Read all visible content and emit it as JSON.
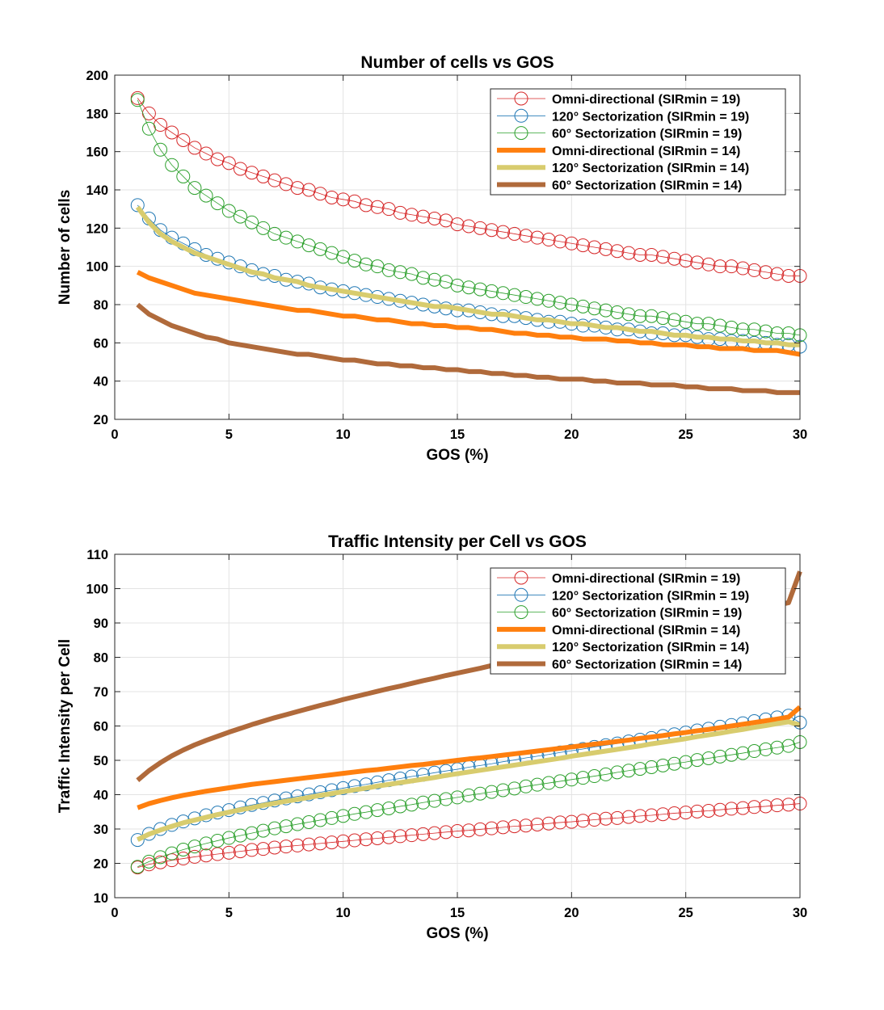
{
  "chart_data": [
    {
      "type": "line",
      "title": "Number of cells vs GOS",
      "xlabel": "GOS (%)",
      "ylabel": "Number of cells",
      "xlim": [
        0,
        30
      ],
      "ylim": [
        20,
        200
      ],
      "xticks": [
        0,
        5,
        10,
        15,
        20,
        25,
        30
      ],
      "yticks": [
        20,
        40,
        60,
        80,
        100,
        120,
        140,
        160,
        180,
        200
      ],
      "grid": true,
      "legend_position": "top-right",
      "x": [
        1,
        1.5,
        2,
        2.5,
        3,
        3.5,
        4,
        4.5,
        5,
        5.5,
        6,
        6.5,
        7,
        7.5,
        8,
        8.5,
        9,
        9.5,
        10,
        10.5,
        11,
        11.5,
        12,
        12.5,
        13,
        13.5,
        14,
        14.5,
        15,
        15.5,
        16,
        16.5,
        17,
        17.5,
        18,
        18.5,
        19,
        19.5,
        20,
        20.5,
        21,
        21.5,
        22,
        22.5,
        23,
        23.5,
        24,
        24.5,
        25,
        25.5,
        26,
        26.5,
        27,
        27.5,
        28,
        28.5,
        29,
        29.5,
        30
      ],
      "series": [
        {
          "name": "Omni-directional (SIRmin = 19)",
          "color": "#d62728",
          "style": "circle-marker-line",
          "values": [
            188,
            180,
            174,
            170,
            166,
            162,
            159,
            156,
            154,
            151,
            149,
            147,
            145,
            143,
            141,
            140,
            138,
            136,
            135,
            134,
            132,
            131,
            130,
            128,
            127,
            126,
            125,
            124,
            122,
            121,
            120,
            119,
            118,
            117,
            116,
            115,
            114,
            113,
            112,
            111,
            110,
            109,
            108,
            107,
            106,
            106,
            105,
            104,
            103,
            102,
            101,
            100,
            100,
            99,
            98,
            97,
            96,
            95,
            95
          ]
        },
        {
          "name": "120° Sectorization (SIRmin = 19)",
          "color": "#1f77b4",
          "style": "circle-marker-line",
          "values": [
            132,
            125,
            119,
            115,
            112,
            109,
            106,
            104,
            102,
            100,
            98,
            96,
            95,
            93,
            92,
            91,
            89,
            88,
            87,
            86,
            85,
            84,
            83,
            82,
            81,
            80,
            79,
            78,
            77,
            77,
            76,
            75,
            74,
            74,
            73,
            72,
            71,
            71,
            70,
            69,
            69,
            68,
            67,
            67,
            66,
            65,
            65,
            64,
            64,
            63,
            62,
            62,
            61,
            61,
            60,
            60,
            59,
            59,
            58
          ]
        },
        {
          "name": "60° Sectorization (SIRmin = 19)",
          "color": "#2ca02c",
          "style": "circle-marker-line",
          "values": [
            187,
            172,
            161,
            153,
            147,
            141,
            137,
            133,
            129,
            126,
            123,
            120,
            117,
            115,
            113,
            111,
            109,
            107,
            105,
            103,
            101,
            100,
            98,
            97,
            96,
            94,
            93,
            92,
            90,
            89,
            88,
            87,
            86,
            85,
            84,
            83,
            82,
            81,
            80,
            79,
            78,
            77,
            76,
            75,
            74,
            74,
            73,
            72,
            71,
            70,
            70,
            69,
            68,
            67,
            67,
            66,
            65,
            65,
            64
          ]
        },
        {
          "name": "Omni-directional (SIRmin = 14)",
          "color": "#ff7f0e",
          "style": "thick-line",
          "values": [
            97,
            94,
            92,
            90,
            88,
            86,
            85,
            84,
            83,
            82,
            81,
            80,
            79,
            78,
            77,
            77,
            76,
            75,
            74,
            74,
            73,
            72,
            72,
            71,
            70,
            70,
            69,
            69,
            68,
            68,
            67,
            67,
            66,
            65,
            65,
            64,
            64,
            63,
            63,
            62,
            62,
            62,
            61,
            61,
            60,
            60,
            59,
            59,
            59,
            58,
            58,
            57,
            57,
            57,
            56,
            56,
            56,
            55,
            54
          ]
        },
        {
          "name": "120° Sectorization (SIRmin = 14)",
          "color": "#d8cc6e",
          "style": "thick-line",
          "values": [
            131,
            123,
            117,
            113,
            110,
            107,
            105,
            103,
            101,
            99,
            97,
            96,
            94,
            93,
            92,
            90,
            89,
            88,
            87,
            86,
            85,
            84,
            83,
            82,
            81,
            80,
            79,
            79,
            78,
            77,
            76,
            75,
            75,
            74,
            73,
            72,
            72,
            71,
            70,
            70,
            69,
            68,
            68,
            67,
            66,
            66,
            65,
            64,
            64,
            63,
            63,
            62,
            62,
            61,
            61,
            60,
            60,
            59,
            59
          ]
        },
        {
          "name": "60° Sectorization (SIRmin = 14)",
          "color": "#b06a3b",
          "style": "thick-line",
          "values": [
            80,
            75,
            72,
            69,
            67,
            65,
            63,
            62,
            60,
            59,
            58,
            57,
            56,
            55,
            54,
            54,
            53,
            52,
            51,
            51,
            50,
            49,
            49,
            48,
            48,
            47,
            47,
            46,
            46,
            45,
            45,
            44,
            44,
            43,
            43,
            42,
            42,
            41,
            41,
            41,
            40,
            40,
            39,
            39,
            39,
            38,
            38,
            38,
            37,
            37,
            36,
            36,
            36,
            35,
            35,
            35,
            34,
            34,
            34
          ]
        }
      ]
    },
    {
      "type": "line",
      "title": "Traffic Intensity per Cell vs GOS",
      "xlabel": "GOS (%)",
      "ylabel": "Traffic Intensity per Cell",
      "xlim": [
        0,
        30
      ],
      "ylim": [
        10,
        110
      ],
      "xticks": [
        0,
        5,
        10,
        15,
        20,
        25,
        30
      ],
      "yticks": [
        10,
        20,
        30,
        40,
        50,
        60,
        70,
        80,
        90,
        100,
        110
      ],
      "grid": true,
      "legend_position": "top-right",
      "x": [
        1,
        1.5,
        2,
        2.5,
        3,
        3.5,
        4,
        4.5,
        5,
        5.5,
        6,
        6.5,
        7,
        7.5,
        8,
        8.5,
        9,
        9.5,
        10,
        10.5,
        11,
        11.5,
        12,
        12.5,
        13,
        13.5,
        14,
        14.5,
        15,
        15.5,
        16,
        16.5,
        17,
        17.5,
        18,
        18.5,
        19,
        19.5,
        20,
        20.5,
        21,
        21.5,
        22,
        22.5,
        23,
        23.5,
        24,
        24.5,
        25,
        25.5,
        26,
        26.5,
        27,
        27.5,
        28,
        28.5,
        29,
        29.5,
        30
      ],
      "series": [
        {
          "name": "Omni-directional (SIRmin = 19)",
          "color": "#d62728",
          "style": "circle-marker-line",
          "values": [
            18.8,
            19.7,
            20.3,
            20.9,
            21.4,
            21.9,
            22.3,
            22.7,
            23.1,
            23.5,
            23.9,
            24.2,
            24.6,
            24.9,
            25.2,
            25.5,
            25.8,
            26.1,
            26.4,
            26.7,
            27.0,
            27.3,
            27.6,
            27.9,
            28.2,
            28.5,
            28.8,
            29.1,
            29.4,
            29.6,
            29.9,
            30.2,
            30.5,
            30.8,
            31.0,
            31.3,
            31.6,
            31.9,
            32.1,
            32.4,
            32.7,
            33.0,
            33.2,
            33.5,
            33.8,
            34.0,
            34.3,
            34.6,
            34.8,
            35.1,
            35.3,
            35.6,
            35.9,
            36.1,
            36.4,
            36.6,
            36.9,
            37.1,
            37.4
          ]
        },
        {
          "name": "120° Sectorization (SIRmin = 19)",
          "color": "#1f77b4",
          "style": "circle-marker-line",
          "values": [
            26.8,
            28.6,
            30.0,
            31.2,
            32.2,
            33.1,
            34.0,
            34.8,
            35.5,
            36.3,
            37.0,
            37.6,
            38.3,
            38.9,
            39.5,
            40.1,
            40.7,
            41.3,
            41.9,
            42.5,
            43.0,
            43.6,
            44.2,
            44.7,
            45.3,
            45.8,
            46.4,
            46.9,
            47.4,
            48.0,
            48.5,
            49.0,
            49.6,
            50.1,
            50.7,
            51.2,
            51.7,
            52.3,
            52.8,
            53.3,
            53.9,
            54.4,
            54.9,
            55.5,
            56.0,
            56.5,
            57.1,
            57.6,
            58.1,
            58.7,
            59.2,
            59.8,
            60.3,
            60.8,
            61.4,
            61.9,
            62.5,
            63.0,
            61.0
          ]
        },
        {
          "name": "60° Sectorization (SIRmin = 19)",
          "color": "#2ca02c",
          "style": "circle-marker-line",
          "values": [
            19.0,
            20.5,
            21.8,
            22.9,
            24.0,
            24.9,
            25.8,
            26.6,
            27.4,
            28.1,
            28.8,
            29.5,
            30.2,
            30.8,
            31.4,
            32.0,
            32.6,
            33.2,
            33.8,
            34.4,
            34.9,
            35.5,
            36.0,
            36.6,
            37.1,
            37.7,
            38.2,
            38.7,
            39.2,
            39.8,
            40.3,
            40.8,
            41.3,
            41.8,
            42.4,
            42.9,
            43.4,
            43.9,
            44.4,
            44.9,
            45.4,
            45.9,
            46.5,
            47.0,
            47.5,
            48.0,
            48.5,
            49.0,
            49.5,
            50.1,
            50.6,
            51.1,
            51.6,
            52.1,
            52.7,
            53.2,
            53.7,
            54.2,
            55.3
          ]
        },
        {
          "name": "Omni-directional (SIRmin = 14)",
          "color": "#ff7f0e",
          "style": "thick-line",
          "values": [
            36.2,
            37.4,
            38.3,
            39.1,
            39.8,
            40.4,
            41.0,
            41.5,
            42.0,
            42.5,
            43.0,
            43.4,
            43.8,
            44.2,
            44.6,
            45.0,
            45.4,
            45.8,
            46.2,
            46.6,
            47.0,
            47.3,
            47.7,
            48.1,
            48.5,
            48.8,
            49.2,
            49.6,
            50.0,
            50.4,
            50.7,
            51.1,
            51.5,
            51.9,
            52.3,
            52.7,
            53.1,
            53.5,
            53.9,
            54.3,
            54.7,
            55.1,
            55.5,
            55.9,
            56.4,
            56.8,
            57.2,
            57.7,
            58.1,
            58.6,
            59.0,
            59.5,
            60.0,
            60.5,
            61.0,
            61.5,
            62.0,
            62.6,
            65.5
          ]
        },
        {
          "name": "120° Sectorization (SIRmin = 14)",
          "color": "#d8cc6e",
          "style": "thick-line",
          "values": [
            26.9,
            28.5,
            29.7,
            30.8,
            31.8,
            32.6,
            33.4,
            34.2,
            34.9,
            35.6,
            36.2,
            36.9,
            37.5,
            38.1,
            38.6,
            39.2,
            39.8,
            40.3,
            40.9,
            41.4,
            41.9,
            42.5,
            43.0,
            43.5,
            44.0,
            44.5,
            45.0,
            45.6,
            46.1,
            46.6,
            47.1,
            47.6,
            48.1,
            48.6,
            49.1,
            49.6,
            50.1,
            50.6,
            51.2,
            51.7,
            52.2,
            52.7,
            53.2,
            53.7,
            54.2,
            54.8,
            55.3,
            55.8,
            56.3,
            56.9,
            57.4,
            57.9,
            58.5,
            59.0,
            59.6,
            60.1,
            60.7,
            61.2,
            60.3
          ]
        },
        {
          "name": "60° Sectorization (SIRmin = 14)",
          "color": "#b06a3b",
          "style": "thick-line",
          "values": [
            44.2,
            47.0,
            49.3,
            51.3,
            53.0,
            54.5,
            55.8,
            57.0,
            58.2,
            59.3,
            60.4,
            61.4,
            62.4,
            63.3,
            64.2,
            65.1,
            66.0,
            66.8,
            67.7,
            68.5,
            69.3,
            70.1,
            70.9,
            71.6,
            72.4,
            73.2,
            73.9,
            74.7,
            75.4,
            76.1,
            76.8,
            77.6,
            78.3,
            79.0,
            79.7,
            80.4,
            81.1,
            81.8,
            82.5,
            83.2,
            83.9,
            84.6,
            85.3,
            86.0,
            86.7,
            87.4,
            88.1,
            88.8,
            89.5,
            90.2,
            91.0,
            91.7,
            92.4,
            93.1,
            93.8,
            94.5,
            95.2,
            95.9,
            105.0
          ]
        }
      ]
    }
  ]
}
